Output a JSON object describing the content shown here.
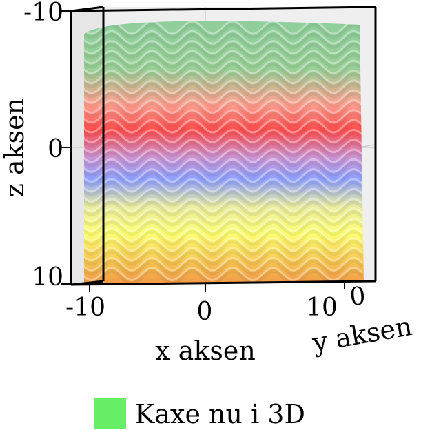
{
  "chart_data": {
    "type": "surface",
    "xlabel": "x aksen",
    "ylabel": "y aksen",
    "zlabel": "z aksen",
    "x_ticks": [
      "-10",
      "0",
      "10"
    ],
    "y_ticks": [
      "0"
    ],
    "z_ticks": [
      "-10",
      "0",
      "10"
    ],
    "xlim": [
      -10,
      10
    ],
    "zlim": [
      -10,
      10
    ],
    "z_axis_reversed": true,
    "grid": true,
    "legend": {
      "position": "bottom-center",
      "label": "Kaxe nu i 3D",
      "color": "#66ee66"
    },
    "surface": {
      "ridges": 7,
      "color_bands_top_to_bottom": [
        "#8fd09a",
        "#ff4a4a",
        "#8a9cff",
        "#f4f48a",
        "#ffff66",
        "#f7a03c"
      ]
    }
  }
}
